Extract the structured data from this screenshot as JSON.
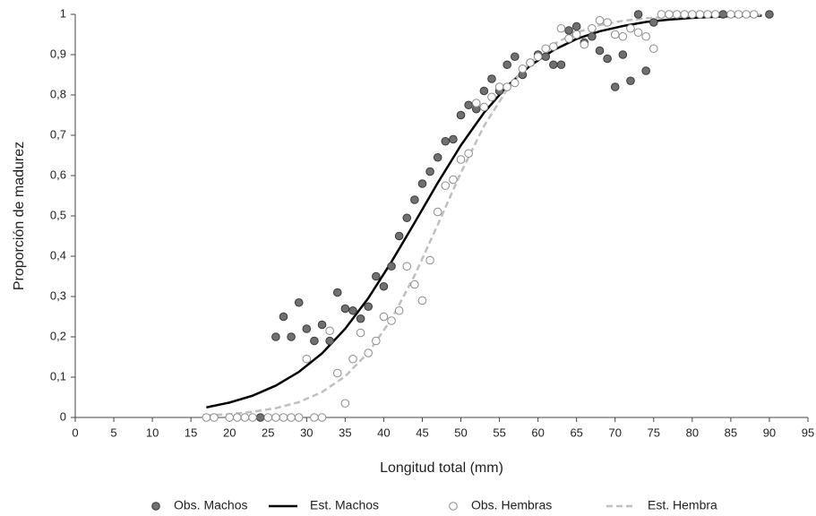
{
  "chart_data": {
    "type": "scatter",
    "x_label": "Longitud total (mm)",
    "y_label": "Proporción de madurez",
    "xlim": [
      0,
      95
    ],
    "xticks": [
      0,
      5,
      10,
      15,
      20,
      25,
      30,
      35,
      40,
      45,
      50,
      55,
      60,
      65,
      70,
      75,
      80,
      85,
      90,
      95
    ],
    "ylim": [
      0,
      1
    ],
    "yticks": [
      0,
      {
        "value": 0.1,
        "label": "0,1"
      },
      {
        "value": 0.2,
        "label": "0,2"
      },
      {
        "value": 0.3,
        "label": "0,3"
      },
      {
        "value": 0.4,
        "label": "0,4"
      },
      {
        "value": 0.5,
        "label": "0,5"
      },
      {
        "value": 0.6,
        "label": "0,6"
      },
      {
        "value": 0.7,
        "label": "0,7"
      },
      {
        "value": 0.8,
        "label": "0,8"
      },
      {
        "value": 0.9,
        "label": "0,9"
      },
      1
    ],
    "grid": false,
    "legend": "bottom",
    "series": [
      {
        "name": "Obs. Machos",
        "type": "scatter",
        "color": "#707070",
        "edge": "#3a3a3a",
        "x": [
          24,
          26,
          27,
          28,
          29,
          30,
          31,
          32,
          33,
          34,
          35,
          36,
          37,
          38,
          39,
          40,
          41,
          42,
          43,
          44,
          45,
          46,
          47,
          48,
          49,
          50,
          51,
          52,
          53,
          54,
          55,
          56,
          57,
          58,
          59,
          60,
          61,
          62,
          63,
          64,
          65,
          66,
          67,
          68,
          69,
          70,
          71,
          72,
          73,
          74,
          75,
          84,
          90
        ],
        "values": [
          0,
          0.2,
          0.25,
          0.2,
          0.285,
          0.22,
          0.19,
          0.23,
          0.19,
          0.31,
          0.27,
          0.265,
          0.245,
          0.275,
          0.35,
          0.325,
          0.375,
          0.45,
          0.495,
          0.54,
          0.58,
          0.61,
          0.645,
          0.685,
          0.69,
          0.75,
          0.775,
          0.765,
          0.81,
          0.84,
          0.81,
          0.875,
          0.895,
          0.85,
          0.88,
          0.9,
          0.895,
          0.875,
          0.875,
          0.96,
          0.97,
          0.93,
          0.945,
          0.91,
          0.89,
          0.82,
          0.9,
          0.835,
          1,
          0.86,
          0.98,
          1,
          1
        ]
      },
      {
        "name": "Est. Machos",
        "type": "line",
        "color": "#000000",
        "dash": false,
        "x": [
          17,
          20,
          23,
          26,
          29,
          32,
          35,
          38,
          41,
          44,
          47,
          50,
          53,
          56,
          59,
          62,
          65,
          68,
          71,
          74,
          77,
          80,
          83,
          86,
          89
        ],
        "values": [
          0.025,
          0.037,
          0.054,
          0.079,
          0.113,
          0.159,
          0.22,
          0.296,
          0.386,
          0.483,
          0.582,
          0.675,
          0.756,
          0.822,
          0.873,
          0.911,
          0.939,
          0.958,
          0.971,
          0.981,
          0.987,
          0.991,
          0.994,
          0.996,
          0.997
        ]
      },
      {
        "name": "Obs. Hembras",
        "type": "scatter",
        "color": "#ffffff",
        "edge": "#8c8c8c",
        "x": [
          17,
          18,
          20,
          21,
          22,
          23,
          25,
          26,
          27,
          28,
          29,
          31,
          32,
          30,
          33,
          34,
          35,
          36,
          37,
          38,
          39,
          40,
          41,
          42,
          43,
          44,
          45,
          46,
          47,
          48,
          49,
          50,
          51,
          52,
          53,
          54,
          55,
          56,
          57,
          58,
          59,
          60,
          61,
          62,
          63,
          64,
          65,
          66,
          67,
          68,
          69,
          70,
          71,
          72,
          73,
          74,
          75,
          76,
          77,
          78,
          79,
          80,
          81,
          82,
          83,
          85,
          86,
          87,
          88
        ],
        "values": [
          0,
          0,
          0,
          0,
          0,
          0,
          0,
          0,
          0,
          0,
          0,
          0,
          0,
          0.145,
          0.215,
          0.11,
          0.035,
          0.145,
          0.21,
          0.16,
          0.19,
          0.25,
          0.24,
          0.265,
          0.375,
          0.33,
          0.29,
          0.39,
          0.51,
          0.575,
          0.59,
          0.64,
          0.655,
          0.78,
          0.77,
          0.795,
          0.82,
          0.82,
          0.83,
          0.865,
          0.88,
          0.895,
          0.915,
          0.92,
          0.965,
          0.94,
          0.95,
          0.925,
          0.965,
          0.985,
          0.98,
          0.95,
          0.945,
          0.965,
          0.955,
          0.945,
          0.915,
          1,
          1,
          1,
          1,
          1,
          1,
          1,
          1,
          1,
          1,
          1,
          1
        ]
      },
      {
        "name": "Est. Hembra",
        "type": "line",
        "color": "#bfbfbf",
        "dash": true,
        "x": [
          17,
          20,
          23,
          26,
          29,
          32,
          35,
          38,
          41,
          44,
          47,
          50,
          53,
          56,
          59,
          62,
          65,
          68,
          71,
          74,
          77,
          80,
          83,
          86,
          89
        ],
        "values": [
          0.005,
          0.008,
          0.014,
          0.023,
          0.038,
          0.063,
          0.102,
          0.161,
          0.244,
          0.352,
          0.478,
          0.607,
          0.723,
          0.814,
          0.881,
          0.926,
          0.955,
          0.973,
          0.984,
          0.99,
          0.994,
          0.997,
          0.998,
          0.999,
          0.999
        ]
      }
    ]
  }
}
